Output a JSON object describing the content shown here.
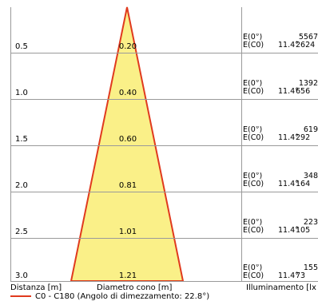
{
  "rows": [
    {
      "distance": "0.5",
      "diameter": "0.20",
      "e0": "E(0°)",
      "e0_value": "5567",
      "ec": "E(C0)",
      "angle": "11.4°",
      "ec_value": "2624"
    },
    {
      "distance": "1.0",
      "diameter": "0.40",
      "e0": "E(0°)",
      "e0_value": "1392",
      "ec": "E(C0)",
      "angle": "11.4°",
      "ec_value": "656"
    },
    {
      "distance": "1.5",
      "diameter": "0.60",
      "e0": "E(0°)",
      "e0_value": "619",
      "ec": "E(C0)",
      "angle": "11.4°",
      "ec_value": "292"
    },
    {
      "distance": "2.0",
      "diameter": "0.81",
      "e0": "E(0°)",
      "e0_value": "348",
      "ec": "E(C0)",
      "angle": "11.4°",
      "ec_value": "164"
    },
    {
      "distance": "2.5",
      "diameter": "1.01",
      "e0": "E(0°)",
      "e0_value": "223",
      "ec": "E(C0)",
      "angle": "11.4°",
      "ec_value": "105"
    },
    {
      "distance": "3.0",
      "diameter": "1.21",
      "e0": "E(0°)",
      "e0_value": "155",
      "ec": "E(C0)",
      "angle": "11.4°",
      "ec_value": "73"
    }
  ],
  "footer": {
    "distance_label": "Distanza [m]",
    "diameter_label": "Diametro cono [m]",
    "illuminance_label": "Illuminamento [lx"
  },
  "legend": {
    "label": "C0 - C180 (Angolo di dimezzamento: 22.8°)"
  },
  "colors": {
    "cone_fill": "#faf088",
    "cone_stroke": "#e03a1e",
    "grid": "#9a9a9a"
  }
}
